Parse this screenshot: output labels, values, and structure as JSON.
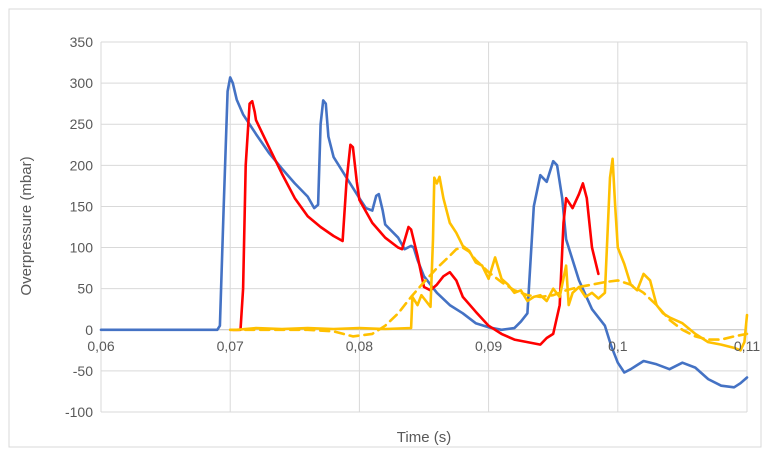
{
  "chart_data": {
    "type": "line",
    "title": "",
    "xlabel": "Time (s)",
    "ylabel": "Overpressure (mbar)",
    "xlim": [
      0.06,
      0.11
    ],
    "ylim": [
      -100,
      350
    ],
    "x_ticks": [
      0.06,
      0.07,
      0.08,
      0.09,
      0.1,
      0.11
    ],
    "x_tick_labels": [
      "0,06",
      "0,07",
      "0,08",
      "0,09",
      "0,1",
      "0,11"
    ],
    "y_ticks": [
      -100,
      -50,
      0,
      50,
      100,
      150,
      200,
      250,
      300,
      350
    ],
    "y_tick_labels": [
      "-100",
      "-50",
      "0",
      "50",
      "100",
      "150",
      "200",
      "250",
      "300",
      "350"
    ],
    "grid": "vertical and horizontal",
    "legend": "none",
    "series": [
      {
        "color": "#4472C4",
        "style": "solid",
        "points": [
          [
            0.06,
            0
          ],
          [
            0.069,
            0
          ],
          [
            0.0692,
            5
          ],
          [
            0.0695,
            150
          ],
          [
            0.0698,
            290
          ],
          [
            0.07,
            307
          ],
          [
            0.0702,
            300
          ],
          [
            0.0705,
            280
          ],
          [
            0.071,
            262
          ],
          [
            0.072,
            238
          ],
          [
            0.073,
            215
          ],
          [
            0.074,
            196
          ],
          [
            0.075,
            178
          ],
          [
            0.076,
            162
          ],
          [
            0.0765,
            148
          ],
          [
            0.0768,
            152
          ],
          [
            0.077,
            250
          ],
          [
            0.0772,
            279
          ],
          [
            0.0774,
            275
          ],
          [
            0.0776,
            235
          ],
          [
            0.078,
            210
          ],
          [
            0.079,
            185
          ],
          [
            0.08,
            160
          ],
          [
            0.0805,
            148
          ],
          [
            0.081,
            145
          ],
          [
            0.0813,
            163
          ],
          [
            0.0815,
            165
          ],
          [
            0.0818,
            145
          ],
          [
            0.082,
            128
          ],
          [
            0.083,
            112
          ],
          [
            0.0835,
            98
          ],
          [
            0.084,
            102
          ],
          [
            0.0842,
            100
          ],
          [
            0.0845,
            85
          ],
          [
            0.085,
            65
          ],
          [
            0.086,
            45
          ],
          [
            0.087,
            30
          ],
          [
            0.088,
            20
          ],
          [
            0.089,
            8
          ],
          [
            0.09,
            3
          ],
          [
            0.091,
            0
          ],
          [
            0.092,
            2
          ],
          [
            0.0925,
            10
          ],
          [
            0.093,
            20
          ],
          [
            0.0935,
            150
          ],
          [
            0.094,
            188
          ],
          [
            0.0945,
            180
          ],
          [
            0.095,
            205
          ],
          [
            0.0953,
            200
          ],
          [
            0.0957,
            160
          ],
          [
            0.096,
            110
          ],
          [
            0.097,
            60
          ],
          [
            0.098,
            25
          ],
          [
            0.099,
            5
          ],
          [
            0.0995,
            -20
          ],
          [
            0.1,
            -40
          ],
          [
            0.1005,
            -52
          ],
          [
            0.101,
            -48
          ],
          [
            0.102,
            -38
          ],
          [
            0.103,
            -42
          ],
          [
            0.104,
            -48
          ],
          [
            0.105,
            -40
          ],
          [
            0.106,
            -46
          ],
          [
            0.107,
            -60
          ],
          [
            0.108,
            -68
          ],
          [
            0.109,
            -70
          ],
          [
            0.1095,
            -65
          ],
          [
            0.11,
            -58
          ]
        ]
      },
      {
        "color": "#FF0000",
        "style": "solid",
        "points": [
          [
            0.0702,
            0
          ],
          [
            0.0708,
            0
          ],
          [
            0.071,
            50
          ],
          [
            0.0712,
            200
          ],
          [
            0.0715,
            275
          ],
          [
            0.0717,
            278
          ],
          [
            0.0719,
            265
          ],
          [
            0.072,
            255
          ],
          [
            0.073,
            222
          ],
          [
            0.074,
            190
          ],
          [
            0.075,
            160
          ],
          [
            0.076,
            138
          ],
          [
            0.077,
            125
          ],
          [
            0.078,
            114
          ],
          [
            0.0787,
            108
          ],
          [
            0.079,
            180
          ],
          [
            0.0793,
            225
          ],
          [
            0.0795,
            222
          ],
          [
            0.0798,
            180
          ],
          [
            0.08,
            158
          ],
          [
            0.081,
            130
          ],
          [
            0.082,
            112
          ],
          [
            0.083,
            100
          ],
          [
            0.0833,
            98
          ],
          [
            0.0838,
            125
          ],
          [
            0.084,
            122
          ],
          [
            0.0845,
            90
          ],
          [
            0.085,
            52
          ],
          [
            0.0855,
            48
          ],
          [
            0.086,
            55
          ],
          [
            0.0865,
            65
          ],
          [
            0.087,
            70
          ],
          [
            0.0875,
            60
          ],
          [
            0.088,
            40
          ],
          [
            0.089,
            22
          ],
          [
            0.09,
            5
          ],
          [
            0.091,
            -5
          ],
          [
            0.092,
            -12
          ],
          [
            0.093,
            -15
          ],
          [
            0.094,
            -18
          ],
          [
            0.0945,
            -10
          ],
          [
            0.095,
            -5
          ],
          [
            0.0955,
            30
          ],
          [
            0.0958,
            130
          ],
          [
            0.096,
            160
          ],
          [
            0.0965,
            148
          ],
          [
            0.097,
            165
          ],
          [
            0.0973,
            178
          ],
          [
            0.0976,
            160
          ],
          [
            0.098,
            100
          ],
          [
            0.0985,
            68
          ]
        ]
      },
      {
        "color": "#FFC000",
        "style": "solid",
        "points": [
          [
            0.07,
            0
          ],
          [
            0.0705,
            0
          ],
          [
            0.072,
            2
          ],
          [
            0.074,
            1
          ],
          [
            0.076,
            2
          ],
          [
            0.078,
            1
          ],
          [
            0.08,
            2
          ],
          [
            0.082,
            1
          ],
          [
            0.084,
            2
          ],
          [
            0.0841,
            40
          ],
          [
            0.0845,
            30
          ],
          [
            0.0848,
            42
          ],
          [
            0.085,
            38
          ],
          [
            0.0855,
            28
          ],
          [
            0.0857,
            110
          ],
          [
            0.0858,
            185
          ],
          [
            0.086,
            178
          ],
          [
            0.0862,
            186
          ],
          [
            0.0865,
            160
          ],
          [
            0.087,
            130
          ],
          [
            0.0875,
            118
          ],
          [
            0.088,
            102
          ],
          [
            0.0885,
            96
          ],
          [
            0.089,
            82
          ],
          [
            0.0895,
            78
          ],
          [
            0.09,
            62
          ],
          [
            0.0905,
            88
          ],
          [
            0.091,
            62
          ],
          [
            0.0915,
            55
          ],
          [
            0.092,
            45
          ],
          [
            0.0925,
            48
          ],
          [
            0.093,
            35
          ],
          [
            0.0935,
            40
          ],
          [
            0.094,
            42
          ],
          [
            0.0945,
            35
          ],
          [
            0.095,
            50
          ],
          [
            0.0955,
            40
          ],
          [
            0.096,
            78
          ],
          [
            0.0962,
            30
          ],
          [
            0.0965,
            45
          ],
          [
            0.097,
            52
          ],
          [
            0.0975,
            40
          ],
          [
            0.098,
            45
          ],
          [
            0.0985,
            38
          ],
          [
            0.099,
            45
          ],
          [
            0.0994,
            185
          ],
          [
            0.0996,
            208
          ],
          [
            0.0998,
            150
          ],
          [
            0.1,
            100
          ],
          [
            0.1005,
            80
          ],
          [
            0.101,
            55
          ],
          [
            0.1015,
            48
          ],
          [
            0.102,
            68
          ],
          [
            0.1025,
            60
          ],
          [
            0.103,
            30
          ],
          [
            0.1035,
            20
          ],
          [
            0.104,
            15
          ],
          [
            0.105,
            8
          ],
          [
            0.106,
            -5
          ],
          [
            0.107,
            -15
          ],
          [
            0.108,
            -18
          ],
          [
            0.109,
            -22
          ],
          [
            0.1095,
            -25
          ],
          [
            0.1098,
            -15
          ],
          [
            0.11,
            18
          ]
        ]
      },
      {
        "color": "#FFC000",
        "style": "dashed",
        "points": [
          [
            0.07,
            0
          ],
          [
            0.074,
            0
          ],
          [
            0.076,
            0
          ],
          [
            0.078,
            -2
          ],
          [
            0.0795,
            -8
          ],
          [
            0.081,
            -5
          ],
          [
            0.082,
            5
          ],
          [
            0.083,
            20
          ],
          [
            0.084,
            40
          ],
          [
            0.085,
            58
          ],
          [
            0.086,
            75
          ],
          [
            0.087,
            90
          ],
          [
            0.0875,
            98
          ],
          [
            0.088,
            100
          ],
          [
            0.0885,
            95
          ],
          [
            0.089,
            85
          ],
          [
            0.09,
            70
          ],
          [
            0.091,
            58
          ],
          [
            0.092,
            48
          ],
          [
            0.093,
            42
          ],
          [
            0.094,
            40
          ],
          [
            0.095,
            42
          ],
          [
            0.096,
            48
          ],
          [
            0.097,
            52
          ],
          [
            0.098,
            55
          ],
          [
            0.099,
            58
          ],
          [
            0.1,
            60
          ],
          [
            0.101,
            55
          ],
          [
            0.102,
            45
          ],
          [
            0.103,
            30
          ],
          [
            0.104,
            12
          ],
          [
            0.105,
            0
          ],
          [
            0.106,
            -8
          ],
          [
            0.107,
            -12
          ],
          [
            0.108,
            -12
          ],
          [
            0.109,
            -8
          ],
          [
            0.11,
            -5
          ]
        ]
      }
    ]
  }
}
